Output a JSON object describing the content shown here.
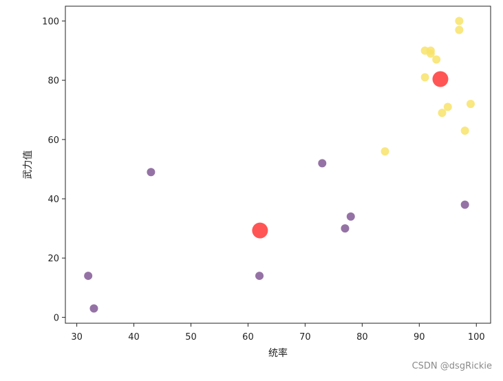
{
  "chart_data": {
    "type": "scatter",
    "title": "",
    "xlabel": "统率",
    "ylabel": "武力值",
    "xlim": [
      28,
      102.5
    ],
    "ylim": [
      -2,
      105
    ],
    "xticks": [
      30,
      40,
      50,
      60,
      70,
      80,
      90,
      100
    ],
    "yticks": [
      0,
      20,
      40,
      60,
      80,
      100
    ],
    "grid": false,
    "series": [
      {
        "color": "#7b4f8e",
        "opacity": 0.8,
        "marker_size": "small",
        "points": [
          [
            32,
            14
          ],
          [
            33,
            3
          ],
          [
            43,
            49
          ],
          [
            62,
            14
          ],
          [
            73,
            52
          ],
          [
            77,
            30
          ],
          [
            78,
            34
          ],
          [
            98,
            38
          ]
        ]
      },
      {
        "color": "#f8e36a",
        "opacity": 0.85,
        "marker_size": "small",
        "points": [
          [
            84,
            56
          ],
          [
            91,
            90
          ],
          [
            91,
            81
          ],
          [
            92,
            90
          ],
          [
            92,
            89
          ],
          [
            93,
            87
          ],
          [
            94,
            69
          ],
          [
            95,
            71
          ],
          [
            97,
            100
          ],
          [
            97,
            97
          ],
          [
            98,
            63
          ],
          [
            99,
            72
          ]
        ]
      },
      {
        "color": "#ff2a2a",
        "opacity": 0.8,
        "marker_size": "large",
        "points": [
          [
            62.1,
            29.3
          ],
          [
            93.7,
            80.4
          ]
        ]
      }
    ]
  },
  "watermark": "CSDN @dsgRickie"
}
